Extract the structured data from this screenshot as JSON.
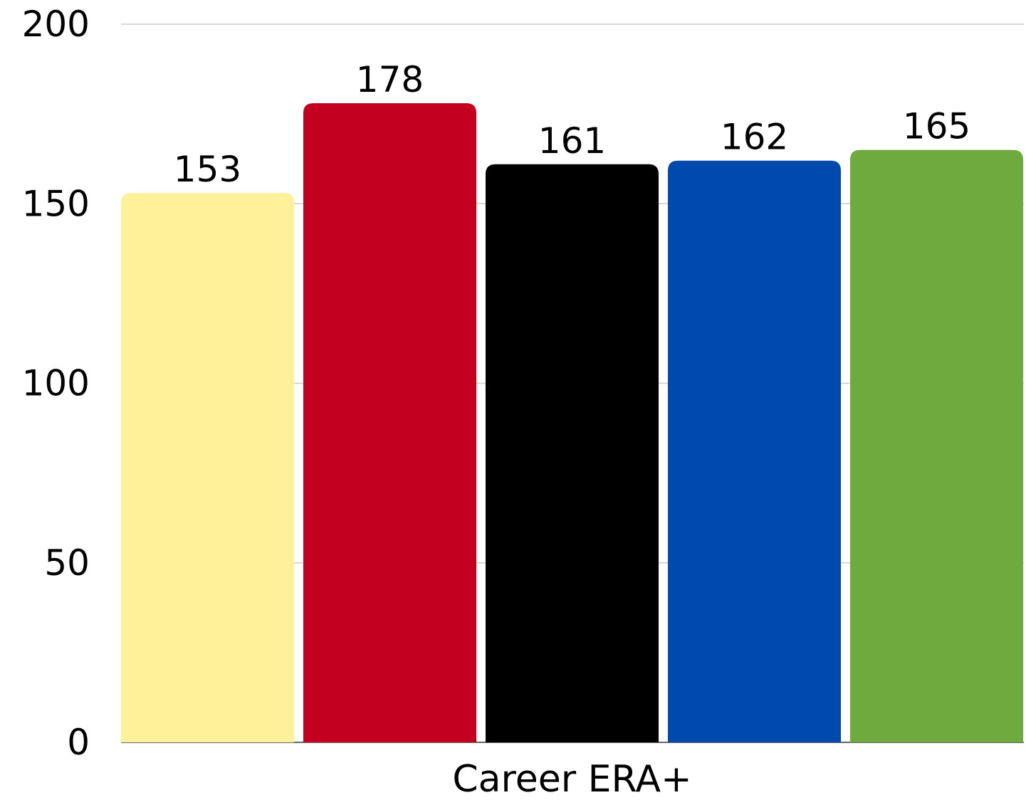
{
  "chart_data": {
    "type": "bar",
    "title": "",
    "xlabel": "",
    "ylabel": "",
    "categories": [
      "Career ERA+"
    ],
    "series": [
      {
        "values": [
          153
        ],
        "color": "#FFF199"
      },
      {
        "values": [
          178
        ],
        "color": "#C3001F"
      },
      {
        "values": [
          161
        ],
        "color": "#000000"
      },
      {
        "values": [
          162
        ],
        "color": "#004AAD"
      },
      {
        "values": [
          165
        ],
        "color": "#6EAA3E"
      }
    ],
    "ylim": [
      0,
      200
    ],
    "yticks": [
      0,
      50,
      100,
      150,
      200
    ],
    "grid": true,
    "legend": "none",
    "data_labels": true
  }
}
